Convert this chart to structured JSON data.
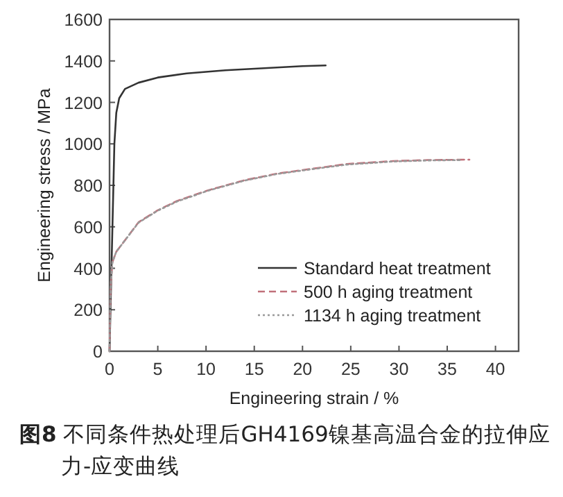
{
  "chart_data": {
    "type": "line",
    "xlabel": "Engineering strain / %",
    "ylabel": "Engineering stress / MPa",
    "xlim": [
      0,
      42.4
    ],
    "ylim": [
      0,
      1600
    ],
    "xticks": [
      0,
      5,
      10,
      15,
      20,
      25,
      30,
      35,
      40
    ],
    "yticks": [
      0,
      200,
      400,
      600,
      800,
      1000,
      1200,
      1400,
      1600
    ],
    "legend": "bottom right",
    "grid": false,
    "marker": "none",
    "series": [
      {
        "name": "Standard heat treatment",
        "color": "#333333",
        "line_style": "solid",
        "x": [
          0,
          0.2,
          0.3,
          0.5,
          0.7,
          1.0,
          1.6,
          3,
          5,
          8,
          12,
          16,
          20,
          22.4
        ],
        "values": [
          0,
          400,
          600,
          1000,
          1150,
          1220,
          1265,
          1295,
          1320,
          1340,
          1355,
          1365,
          1375,
          1378
        ]
      },
      {
        "name": "500 h aging treatment",
        "color": "#c0707a",
        "line_style": "dashed",
        "x": [
          0,
          0.1,
          0.3,
          0.7,
          1.6,
          3,
          5,
          7,
          10.2,
          14,
          17.4,
          21,
          24.6,
          29.4,
          33,
          37.3
        ],
        "values": [
          0,
          300,
          430,
          480,
          535,
          622,
          680,
          725,
          776,
          825,
          857,
          880,
          903,
          917,
          922,
          924
        ]
      },
      {
        "name": "1134 h aging treatment",
        "color": "#999999",
        "line_style": "dotted",
        "x": [
          0,
          0.1,
          0.3,
          0.7,
          1.6,
          3,
          5,
          7,
          10.2,
          14,
          17.4,
          21,
          24.6,
          29.4,
          33,
          36.5
        ],
        "values": [
          0,
          300,
          430,
          480,
          535,
          620,
          678,
          722,
          774,
          823,
          855,
          878,
          900,
          915,
          920,
          922
        ]
      }
    ],
    "annotations": [
      "**图8** 不同条件热处理后GH4169镍基高温合金的拉伸应力-应变曲线"
    ]
  }
}
